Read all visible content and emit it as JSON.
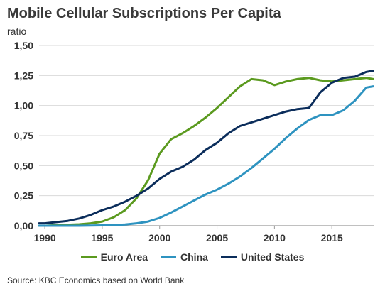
{
  "chart_data": {
    "type": "line",
    "title": "Mobile Cellular Subscriptions Per Capita",
    "subtitle": "ratio",
    "source": "Source: KBC Economics based on World Bank",
    "xlabel": "",
    "ylabel": "",
    "xlim": [
      1989.5,
      2018.7
    ],
    "ylim": [
      0,
      1.5
    ],
    "x_ticks": [
      1990,
      1995,
      2000,
      2005,
      2010,
      2015
    ],
    "y_ticks": [
      0,
      0.25,
      0.5,
      0.75,
      1.0,
      1.25,
      1.5
    ],
    "y_tick_labels": [
      "0,00",
      "0,25",
      "0,50",
      "0,75",
      "1,00",
      "1,25",
      "1,50"
    ],
    "grid": true,
    "legend_position": "bottom",
    "series": [
      {
        "name": "Euro Area",
        "color": "#5b9a1f",
        "points": [
          [
            1989.5,
            0.0
          ],
          [
            1990,
            0.0
          ],
          [
            1991,
            0.005
          ],
          [
            1992,
            0.008
          ],
          [
            1993,
            0.012
          ],
          [
            1994,
            0.02
          ],
          [
            1995,
            0.035
          ],
          [
            1996,
            0.07
          ],
          [
            1997,
            0.13
          ],
          [
            1998,
            0.23
          ],
          [
            1999,
            0.38
          ],
          [
            2000,
            0.6
          ],
          [
            2001,
            0.72
          ],
          [
            2002,
            0.77
          ],
          [
            2003,
            0.83
          ],
          [
            2004,
            0.9
          ],
          [
            2005,
            0.98
          ],
          [
            2006,
            1.07
          ],
          [
            2007,
            1.16
          ],
          [
            2008,
            1.22
          ],
          [
            2009,
            1.21
          ],
          [
            2010,
            1.17
          ],
          [
            2011,
            1.2
          ],
          [
            2012,
            1.22
          ],
          [
            2013,
            1.23
          ],
          [
            2014,
            1.21
          ],
          [
            2015,
            1.2
          ],
          [
            2016,
            1.21
          ],
          [
            2017,
            1.22
          ],
          [
            2018,
            1.23
          ],
          [
            2018.6,
            1.22
          ]
        ]
      },
      {
        "name": "China",
        "color": "#2e93c0",
        "points": [
          [
            1989.5,
            0.0
          ],
          [
            1990,
            0.0
          ],
          [
            1991,
            0.0
          ],
          [
            1992,
            0.0
          ],
          [
            1993,
            0.0
          ],
          [
            1994,
            0.002
          ],
          [
            1995,
            0.003
          ],
          [
            1996,
            0.005
          ],
          [
            1997,
            0.01
          ],
          [
            1998,
            0.02
          ],
          [
            1999,
            0.035
          ],
          [
            2000,
            0.065
          ],
          [
            2001,
            0.11
          ],
          [
            2002,
            0.16
          ],
          [
            2003,
            0.21
          ],
          [
            2004,
            0.26
          ],
          [
            2005,
            0.3
          ],
          [
            2006,
            0.35
          ],
          [
            2007,
            0.41
          ],
          [
            2008,
            0.48
          ],
          [
            2009,
            0.56
          ],
          [
            2010,
            0.64
          ],
          [
            2011,
            0.73
          ],
          [
            2012,
            0.81
          ],
          [
            2013,
            0.88
          ],
          [
            2014,
            0.92
          ],
          [
            2015,
            0.92
          ],
          [
            2016,
            0.96
          ],
          [
            2017,
            1.04
          ],
          [
            2018,
            1.15
          ],
          [
            2018.6,
            1.16
          ]
        ]
      },
      {
        "name": "United States",
        "color": "#0b2d5b",
        "points": [
          [
            1989.5,
            0.02
          ],
          [
            1990,
            0.02
          ],
          [
            1991,
            0.03
          ],
          [
            1992,
            0.04
          ],
          [
            1993,
            0.06
          ],
          [
            1994,
            0.09
          ],
          [
            1995,
            0.13
          ],
          [
            1996,
            0.16
          ],
          [
            1997,
            0.2
          ],
          [
            1998,
            0.25
          ],
          [
            1999,
            0.31
          ],
          [
            2000,
            0.39
          ],
          [
            2001,
            0.45
          ],
          [
            2002,
            0.49
          ],
          [
            2003,
            0.55
          ],
          [
            2004,
            0.63
          ],
          [
            2005,
            0.69
          ],
          [
            2006,
            0.77
          ],
          [
            2007,
            0.83
          ],
          [
            2008,
            0.86
          ],
          [
            2009,
            0.89
          ],
          [
            2010,
            0.92
          ],
          [
            2011,
            0.95
          ],
          [
            2012,
            0.97
          ],
          [
            2013,
            0.98
          ],
          [
            2014,
            1.11
          ],
          [
            2015,
            1.19
          ],
          [
            2016,
            1.23
          ],
          [
            2017,
            1.24
          ],
          [
            2018,
            1.28
          ],
          [
            2018.6,
            1.29
          ]
        ]
      }
    ]
  }
}
